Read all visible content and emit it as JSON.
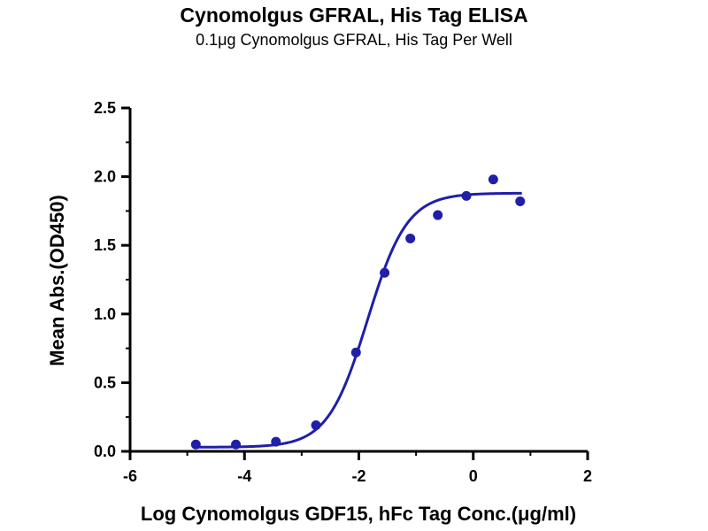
{
  "chart_data": {
    "type": "scatter",
    "title": "Cynomolgus GFRAL, His Tag ELISA",
    "subtitle": "0.1μg Cynomolgus GFRAL, His Tag Per Well",
    "xlabel": "Log Cynomolgus GDF15, hFc Tag Conc.(μg/ml)",
    "ylabel": "Mean Abs.(OD450)",
    "xlim": [
      -6,
      2
    ],
    "ylim": [
      0,
      2.5
    ],
    "xticks": [
      "-6",
      "-4",
      "-2",
      "0",
      "2"
    ],
    "yticks": [
      "0.0",
      "0.5",
      "1.0",
      "1.5",
      "2.0",
      "2.5"
    ],
    "grid": false,
    "color": "#1f1fa8",
    "series": [
      {
        "points": [
          {
            "x": -4.85,
            "y": 0.05
          },
          {
            "x": -4.15,
            "y": 0.05
          },
          {
            "x": -3.45,
            "y": 0.07
          },
          {
            "x": -2.75,
            "y": 0.19
          },
          {
            "x": -2.05,
            "y": 0.72
          },
          {
            "x": -1.55,
            "y": 1.3
          },
          {
            "x": -1.1,
            "y": 1.55
          },
          {
            "x": -0.62,
            "y": 1.72
          },
          {
            "x": -0.12,
            "y": 1.86
          },
          {
            "x": 0.35,
            "y": 1.98
          },
          {
            "x": 0.82,
            "y": 1.82
          }
        ],
        "fit": {
          "model": "4PL",
          "bottom": 0.03,
          "top": 1.88,
          "logEC50": -1.85,
          "hillslope": 1.25,
          "xrange": [
            -4.85,
            0.85
          ]
        }
      }
    ]
  }
}
